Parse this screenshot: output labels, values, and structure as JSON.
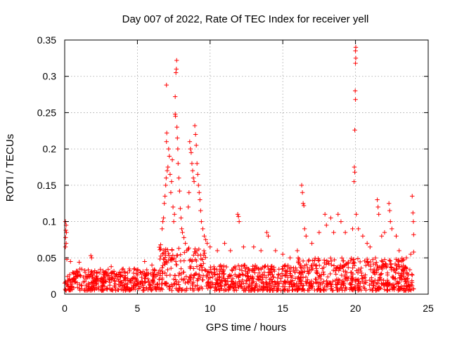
{
  "chart_data": {
    "type": "scatter",
    "title": "Day 007 of 2022, Rate Of TEC Index for receiver yell",
    "xlabel": "GPS time / hours",
    "ylabel": "ROTI / TECUs",
    "xlim": [
      0,
      25
    ],
    "ylim": [
      0,
      0.35
    ],
    "x_ticks": [
      "0",
      "5",
      "10",
      "15",
      "20",
      "25"
    ],
    "y_ticks": [
      "0",
      "0.05",
      "0.1",
      "0.15",
      "0.2",
      "0.25",
      "0.3",
      "0.35"
    ],
    "x_tick_values": [
      0,
      5,
      10,
      15,
      20,
      25
    ],
    "y_tick_values": [
      0,
      0.05,
      0.1,
      0.15,
      0.2,
      0.25,
      0.3,
      0.35
    ],
    "grid": true,
    "marker": "+",
    "color": "#ff0000",
    "series": [
      {
        "name": "ROTI",
        "background_band": {
          "x_range": [
            0,
            24
          ],
          "typical_range": [
            0.005,
            0.035
          ]
        },
        "points": [
          [
            0.05,
            0.1
          ],
          [
            0.1,
            0.095
          ],
          [
            0.08,
            0.088
          ],
          [
            0.12,
            0.085
          ],
          [
            0.06,
            0.078
          ],
          [
            0.1,
            0.07
          ],
          [
            0.05,
            0.065
          ],
          [
            0.15,
            0.048
          ],
          [
            0.4,
            0.045
          ],
          [
            1.0,
            0.044
          ],
          [
            1.8,
            0.053
          ],
          [
            1.85,
            0.05
          ],
          [
            3.2,
            0.038
          ],
          [
            4.8,
            0.035
          ],
          [
            5.5,
            0.045
          ],
          [
            6.0,
            0.04
          ],
          [
            6.6,
            0.068
          ],
          [
            6.7,
            0.09
          ],
          [
            6.75,
            0.1
          ],
          [
            6.8,
            0.105
          ],
          [
            6.85,
            0.125
          ],
          [
            6.9,
            0.135
          ],
          [
            6.95,
            0.15
          ],
          [
            6.98,
            0.16
          ],
          [
            7.0,
            0.21
          ],
          [
            7.02,
            0.222
          ],
          [
            7.0,
            0.288
          ],
          [
            7.05,
            0.17
          ],
          [
            7.1,
            0.175
          ],
          [
            7.15,
            0.2
          ],
          [
            7.2,
            0.19
          ],
          [
            7.25,
            0.165
          ],
          [
            7.3,
            0.14
          ],
          [
            7.35,
            0.155
          ],
          [
            7.4,
            0.185
          ],
          [
            7.45,
            0.12
          ],
          [
            7.5,
            0.1
          ],
          [
            7.55,
            0.11
          ],
          [
            7.6,
            0.248
          ],
          [
            7.62,
            0.245
          ],
          [
            7.6,
            0.272
          ],
          [
            7.65,
            0.305
          ],
          [
            7.68,
            0.31
          ],
          [
            7.7,
            0.322
          ],
          [
            7.72,
            0.23
          ],
          [
            7.75,
            0.215
          ],
          [
            7.78,
            0.2
          ],
          [
            7.8,
            0.18
          ],
          [
            7.85,
            0.16
          ],
          [
            7.9,
            0.142
          ],
          [
            7.95,
            0.118
          ],
          [
            8.0,
            0.105
          ],
          [
            8.05,
            0.09
          ],
          [
            8.1,
            0.085
          ],
          [
            8.2,
            0.078
          ],
          [
            8.3,
            0.07
          ],
          [
            8.4,
            0.06
          ],
          [
            8.5,
            0.12
          ],
          [
            8.55,
            0.14
          ],
          [
            8.6,
            0.21
          ],
          [
            8.65,
            0.2
          ],
          [
            8.7,
            0.195
          ],
          [
            8.75,
            0.18
          ],
          [
            8.8,
            0.17
          ],
          [
            8.85,
            0.16
          ],
          [
            8.9,
            0.155
          ],
          [
            8.95,
            0.232
          ],
          [
            9.0,
            0.22
          ],
          [
            9.05,
            0.205
          ],
          [
            9.1,
            0.18
          ],
          [
            9.15,
            0.165
          ],
          [
            9.2,
            0.15
          ],
          [
            9.25,
            0.14
          ],
          [
            9.3,
            0.13
          ],
          [
            9.35,
            0.115
          ],
          [
            9.4,
            0.1
          ],
          [
            9.5,
            0.09
          ],
          [
            9.6,
            0.08
          ],
          [
            9.7,
            0.075
          ],
          [
            9.8,
            0.07
          ],
          [
            10.0,
            0.065
          ],
          [
            10.5,
            0.06
          ],
          [
            11.0,
            0.07
          ],
          [
            11.4,
            0.06
          ],
          [
            11.9,
            0.11
          ],
          [
            11.95,
            0.107
          ],
          [
            12.0,
            0.1
          ],
          [
            12.3,
            0.065
          ],
          [
            13.0,
            0.065
          ],
          [
            13.5,
            0.06
          ],
          [
            13.9,
            0.085
          ],
          [
            14.0,
            0.08
          ],
          [
            14.5,
            0.06
          ],
          [
            15.0,
            0.055
          ],
          [
            15.5,
            0.05
          ],
          [
            16.0,
            0.06
          ],
          [
            16.3,
            0.15
          ],
          [
            16.35,
            0.14
          ],
          [
            16.4,
            0.125
          ],
          [
            16.45,
            0.122
          ],
          [
            16.5,
            0.09
          ],
          [
            16.6,
            0.08
          ],
          [
            17.0,
            0.07
          ],
          [
            17.5,
            0.085
          ],
          [
            17.9,
            0.11
          ],
          [
            18.0,
            0.095
          ],
          [
            18.3,
            0.105
          ],
          [
            18.5,
            0.085
          ],
          [
            18.8,
            0.11
          ],
          [
            19.0,
            0.1
          ],
          [
            19.3,
            0.085
          ],
          [
            19.8,
            0.09
          ],
          [
            19.9,
            0.155
          ],
          [
            19.92,
            0.175
          ],
          [
            19.95,
            0.168
          ],
          [
            19.95,
            0.226
          ],
          [
            20.0,
            0.268
          ],
          [
            19.98,
            0.28
          ],
          [
            20.0,
            0.318
          ],
          [
            20.02,
            0.325
          ],
          [
            20.0,
            0.335
          ],
          [
            20.02,
            0.34
          ],
          [
            20.05,
            0.11
          ],
          [
            20.2,
            0.09
          ],
          [
            20.5,
            0.08
          ],
          [
            20.8,
            0.07
          ],
          [
            21.0,
            0.065
          ],
          [
            21.5,
            0.13
          ],
          [
            21.55,
            0.12
          ],
          [
            21.6,
            0.11
          ],
          [
            21.8,
            0.08
          ],
          [
            22.0,
            0.085
          ],
          [
            22.3,
            0.125
          ],
          [
            22.35,
            0.115
          ],
          [
            22.4,
            0.1
          ],
          [
            22.5,
            0.09
          ],
          [
            22.8,
            0.08
          ],
          [
            23.0,
            0.06
          ],
          [
            23.5,
            0.05
          ],
          [
            23.8,
            0.055
          ],
          [
            23.9,
            0.135
          ],
          [
            23.95,
            0.112
          ],
          [
            23.98,
            0.1
          ],
          [
            24.0,
            0.082
          ],
          [
            24.0,
            0.058
          ]
        ]
      }
    ]
  }
}
